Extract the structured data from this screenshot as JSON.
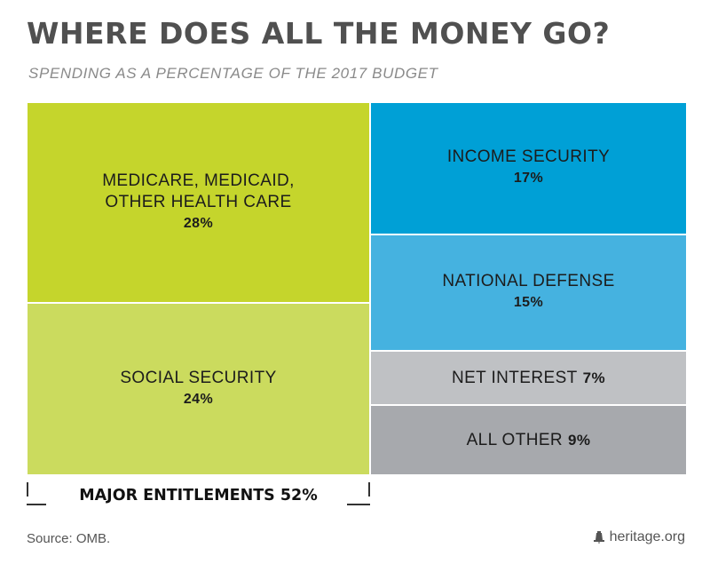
{
  "title": "WHERE DOES ALL THE MONEY GO?",
  "subtitle": "SPENDING AS A PERCENTAGE OF THE 2017 BUDGET",
  "chart_data": {
    "type": "treemap",
    "unit": "%",
    "items": [
      {
        "label": "MEDICARE, MEDICAID,\nOTHER HEALTH CARE",
        "value": 28,
        "value_label": "28%",
        "color": "#c5d52c"
      },
      {
        "label": "SOCIAL SECURITY",
        "value": 24,
        "value_label": "24%",
        "color": "#cbdb5e"
      },
      {
        "label": "INCOME SECURITY",
        "value": 17,
        "value_label": "17%",
        "color": "#00a0d6"
      },
      {
        "label": "NATIONAL DEFENSE",
        "value": 15,
        "value_label": "15%",
        "color": "#45b2e0"
      },
      {
        "label": "NET INTEREST",
        "value": 7,
        "value_label": "7%",
        "color": "#bfc1c4"
      },
      {
        "label": "ALL OTHER",
        "value": 9,
        "value_label": "9%",
        "color": "#a7a9ad"
      }
    ],
    "group": {
      "label": "MAJOR ENTITLEMENTS 52%",
      "members": [
        "MEDICARE, MEDICAID,\nOTHER HEALTH CARE",
        "SOCIAL SECURITY"
      ]
    }
  },
  "footer": {
    "source": "Source: OMB.",
    "brand": "heritage.org",
    "brand_icon": "liberty-bell-icon"
  }
}
